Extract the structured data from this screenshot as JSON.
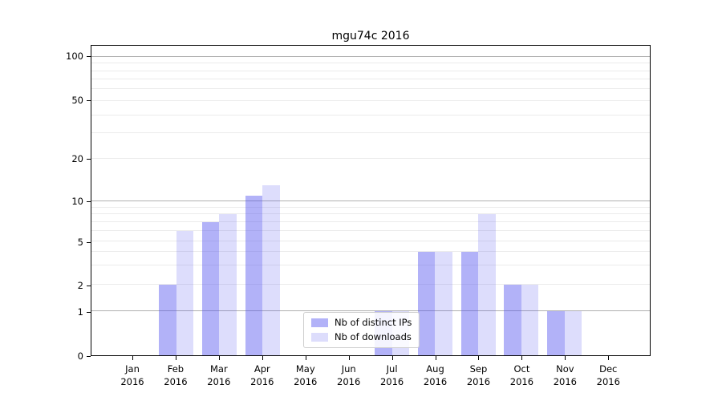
{
  "title": "mgu74c 2016",
  "chart_data": {
    "type": "bar",
    "title": "mgu74c 2016",
    "categories": [
      "Jan",
      "Feb",
      "Mar",
      "Apr",
      "May",
      "Jun",
      "Jul",
      "Aug",
      "Sep",
      "Oct",
      "Nov",
      "Dec"
    ],
    "year": "2016",
    "series": [
      {
        "name": "Nb of distinct IPs",
        "color": "rgba(85,85,240,0.45)",
        "values": [
          0,
          2,
          7,
          11,
          0,
          0,
          1,
          4,
          4,
          2,
          1,
          0
        ]
      },
      {
        "name": "Nb of downloads",
        "color": "rgba(85,85,240,0.20)",
        "values": [
          0,
          6,
          8,
          13,
          0,
          0,
          1,
          4,
          8,
          2,
          1,
          0
        ]
      }
    ],
    "yscale": "log-like",
    "y_tick_labels": [
      "0",
      "1",
      "2",
      "5",
      "10",
      "20",
      "50",
      "100"
    ],
    "y_ticks": [
      0,
      1,
      2,
      5,
      10,
      20,
      50,
      100
    ],
    "y_minor_gridlines": [
      2,
      3,
      4,
      5,
      6,
      7,
      8,
      9,
      20,
      30,
      40,
      50,
      60,
      70,
      80,
      90
    ],
    "y_major_gridlines": [
      1,
      10,
      100
    ],
    "ylim": [
      0,
      120
    ],
    "legend_position": "lower center-right",
    "grid": true,
    "colors": {
      "bar_dark_apparent": "#a9a9f7",
      "bar_light_apparent": "#dadafb",
      "major_grid": "#b0b0b0",
      "minor_grid": "#ebebeb",
      "axis": "#000000"
    }
  }
}
